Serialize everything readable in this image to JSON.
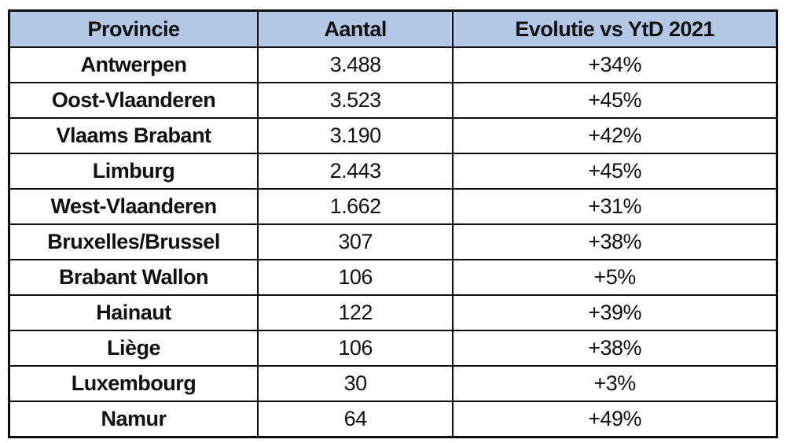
{
  "table": {
    "columns": [
      {
        "key": "province",
        "label": "Provincie"
      },
      {
        "key": "aantal",
        "label": "Aantal"
      },
      {
        "key": "evolution",
        "label": "Evolutie vs YtD 2021"
      }
    ],
    "rows": [
      {
        "province": "Antwerpen",
        "aantal": "3.488",
        "evolution": "+34%"
      },
      {
        "province": "Oost-Vlaanderen",
        "aantal": "3.523",
        "evolution": "+45%"
      },
      {
        "province": "Vlaams Brabant",
        "aantal": "3.190",
        "evolution": "+42%"
      },
      {
        "province": "Limburg",
        "aantal": "2.443",
        "evolution": "+45%"
      },
      {
        "province": "West-Vlaanderen",
        "aantal": "1.662",
        "evolution": "+31%"
      },
      {
        "province": "Bruxelles/Brussel",
        "aantal": "307",
        "evolution": "+38%"
      },
      {
        "province": "Brabant Wallon",
        "aantal": "106",
        "evolution": "+5%"
      },
      {
        "province": "Hainaut",
        "aantal": "122",
        "evolution": "+39%"
      },
      {
        "province": "Liège",
        "aantal": "106",
        "evolution": "+38%"
      },
      {
        "province": "Luxembourg",
        "aantal": "30",
        "evolution": "+3%"
      },
      {
        "province": "Namur",
        "aantal": "64",
        "evolution": "+49%"
      }
    ],
    "colors": {
      "header_bg": "#B4C7E7",
      "border": "#0d0d0d",
      "row_bg": "#ffffff",
      "text": "#111111"
    }
  }
}
